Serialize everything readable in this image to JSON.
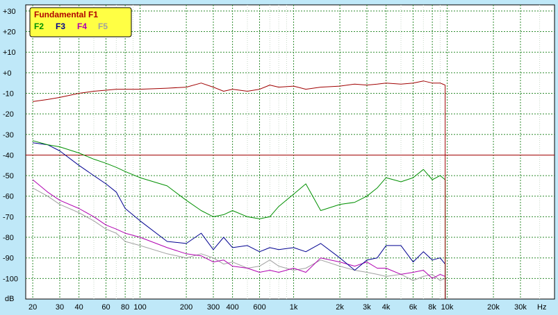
{
  "chart_data": {
    "type": "line",
    "x_scale": "log",
    "xlim": [
      18,
      50000
    ],
    "ylim": [
      -110,
      33
    ],
    "xlabel": "Hz",
    "ylabel": "dB",
    "x_ticks": [
      {
        "value": 20,
        "label": "20"
      },
      {
        "value": 30,
        "label": "30"
      },
      {
        "value": 40,
        "label": "40"
      },
      {
        "value": 60,
        "label": "60"
      },
      {
        "value": 80,
        "label": "80"
      },
      {
        "value": 100,
        "label": "100"
      },
      {
        "value": 200,
        "label": "200"
      },
      {
        "value": 300,
        "label": "300"
      },
      {
        "value": 400,
        "label": "400"
      },
      {
        "value": 600,
        "label": "600"
      },
      {
        "value": 1000,
        "label": "1k"
      },
      {
        "value": 2000,
        "label": "2k"
      },
      {
        "value": 3000,
        "label": "3k"
      },
      {
        "value": 4000,
        "label": "4k"
      },
      {
        "value": 6000,
        "label": "6k"
      },
      {
        "value": 8000,
        "label": "8k"
      },
      {
        "value": 10000,
        "label": "10k"
      },
      {
        "value": 20000,
        "label": "20k"
      },
      {
        "value": 30000,
        "label": "30k"
      }
    ],
    "y_ticks": [
      {
        "value": 30,
        "label": "+30"
      },
      {
        "value": 20,
        "label": "+20"
      },
      {
        "value": 10,
        "label": "+10"
      },
      {
        "value": 0,
        "label": "+0"
      },
      {
        "value": -10,
        "label": "-10"
      },
      {
        "value": -20,
        "label": "-20"
      },
      {
        "value": -30,
        "label": "-30"
      },
      {
        "value": -40,
        "label": "-40"
      },
      {
        "value": -50,
        "label": "-50"
      },
      {
        "value": -60,
        "label": "-60"
      },
      {
        "value": -70,
        "label": "-70"
      },
      {
        "value": -80,
        "label": "-80"
      },
      {
        "value": -90,
        "label": "-90"
      },
      {
        "value": -100,
        "label": "-100"
      }
    ],
    "grid": true,
    "reference_line": {
      "y": -40,
      "color": "#a00000"
    },
    "legend": {
      "placement": "top-left",
      "title": "Fundamental F1",
      "items": [
        {
          "label": "F2",
          "color": "#009000"
        },
        {
          "label": "F3",
          "color": "#000090"
        },
        {
          "label": "F4",
          "color": "#b000b0"
        },
        {
          "label": "F5",
          "color": "#a0a0a0"
        }
      ]
    },
    "series": [
      {
        "name": "Fundamental F1",
        "color": "#a00000",
        "x": [
          20,
          25,
          30,
          40,
          50,
          60,
          70,
          80,
          100,
          150,
          200,
          250,
          300,
          350,
          400,
          500,
          600,
          700,
          800,
          1000,
          1200,
          1500,
          2000,
          2500,
          3000,
          3500,
          4000,
          5000,
          6000,
          7000,
          8000,
          9000,
          9700
        ],
        "y": [
          -14,
          -13,
          -12,
          -10,
          -9,
          -8.5,
          -8,
          -8,
          -8,
          -7.5,
          -7,
          -5,
          -7,
          -9,
          -8,
          -9,
          -8,
          -6,
          -7,
          -6.5,
          -8,
          -7,
          -6.5,
          -5.5,
          -6,
          -5.5,
          -5,
          -5.5,
          -5,
          -4,
          -5,
          -5,
          -6
        ]
      },
      {
        "name": "F2",
        "color": "#009000",
        "x": [
          20,
          25,
          30,
          40,
          50,
          60,
          70,
          80,
          100,
          150,
          200,
          250,
          300,
          350,
          400,
          500,
          600,
          700,
          800,
          1000,
          1200,
          1500,
          2000,
          2500,
          3000,
          3500,
          4000,
          5000,
          6000,
          7000,
          8000,
          9000,
          9700
        ],
        "y": [
          -33,
          -35,
          -36,
          -39,
          -42,
          -44,
          -46,
          -48,
          -51,
          -55,
          -62,
          -67,
          -70,
          -69,
          -67,
          -70,
          -71,
          -70,
          -65,
          -59,
          -54,
          -67,
          -64,
          -63,
          -60,
          -56,
          -51,
          -53,
          -51,
          -47,
          -52,
          -50,
          -52
        ]
      },
      {
        "name": "F3",
        "color": "#000090",
        "x": [
          20,
          25,
          30,
          40,
          50,
          60,
          70,
          80,
          100,
          150,
          200,
          250,
          300,
          350,
          400,
          500,
          600,
          700,
          800,
          1000,
          1200,
          1500,
          2000,
          2500,
          3000,
          3500,
          4000,
          5000,
          6000,
          7000,
          8000,
          9000,
          9700
        ],
        "y": [
          -34,
          -35,
          -38,
          -45,
          -50,
          -54,
          -58,
          -66,
          -72,
          -82,
          -83,
          -78,
          -86,
          -80,
          -85,
          -84,
          -87,
          -85,
          -86,
          -85,
          -87,
          -83,
          -90,
          -96,
          -91,
          -90,
          -84,
          -84,
          -92,
          -87,
          -91,
          -90,
          -93
        ]
      },
      {
        "name": "F4",
        "color": "#b000b0",
        "x": [
          20,
          25,
          30,
          40,
          50,
          60,
          70,
          80,
          100,
          150,
          200,
          250,
          300,
          350,
          400,
          500,
          600,
          700,
          800,
          1000,
          1200,
          1500,
          2000,
          2500,
          3000,
          3500,
          4000,
          5000,
          6000,
          7000,
          8000,
          9000,
          9700
        ],
        "y": [
          -52,
          -58,
          -62,
          -66,
          -70,
          -74,
          -76,
          -78,
          -80,
          -85,
          -88,
          -89,
          -92,
          -91,
          -94,
          -95,
          -97,
          -96,
          -97,
          -95,
          -97,
          -90,
          -92,
          -94,
          -92,
          -95,
          -95,
          -98,
          -97,
          -96,
          -100,
          -98,
          -99
        ]
      },
      {
        "name": "F5",
        "color": "#a0a0a0",
        "x": [
          20,
          25,
          30,
          40,
          50,
          60,
          70,
          80,
          100,
          150,
          200,
          250,
          300,
          350,
          400,
          500,
          600,
          700,
          800,
          1000,
          1200,
          1500,
          2000,
          2500,
          3000,
          3500,
          4000,
          5000,
          6000,
          7000,
          8000,
          9000,
          9700
        ],
        "y": [
          -56,
          -60,
          -64,
          -68,
          -72,
          -76,
          -78,
          -82,
          -84,
          -88,
          -90,
          -88,
          -90,
          -93,
          -92,
          -95,
          -94,
          -91,
          -94,
          -96,
          -95,
          -91,
          -94,
          -96,
          -97,
          -98,
          -99,
          -98,
          -101,
          -99,
          -98,
          -101,
          -100
        ]
      }
    ]
  }
}
